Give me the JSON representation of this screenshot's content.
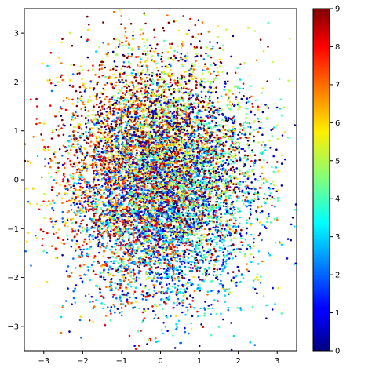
{
  "chart_data": {
    "type": "scatter",
    "title": "",
    "xlabel": "",
    "ylabel": "",
    "xlim": [
      -3.5,
      3.5
    ],
    "ylim": [
      -3.5,
      3.5
    ],
    "grid": false,
    "x_ticks": [
      -3,
      -2,
      -1,
      0,
      1,
      2,
      3
    ],
    "y_ticks": [
      -3,
      -2,
      -1,
      0,
      1,
      2,
      3
    ],
    "x_tick_labels": [
      "−3",
      "−2",
      "−1",
      "0",
      "1",
      "2",
      "3"
    ],
    "y_tick_labels": [
      "−3",
      "−2",
      "−1",
      "0",
      "1",
      "2",
      "3"
    ],
    "colorbar": {
      "colormap": "jet",
      "range": [
        0,
        9
      ],
      "ticks": [
        0,
        1,
        2,
        3,
        4,
        5,
        6,
        7,
        8,
        9
      ],
      "tick_labels": [
        "0",
        "1",
        "2",
        "3",
        "4",
        "5",
        "6",
        "7",
        "8",
        "9"
      ]
    },
    "point_distribution": {
      "description": "dense cloud of many thousands of points, roughly bivariate normal, colored by class 0-9",
      "x_mean": 0.0,
      "x_std": 1.15,
      "y_mean": 0.0,
      "y_std": 1.15,
      "classes": [
        {
          "label": 0,
          "color": "#00008f",
          "x_center": 0.6,
          "y_center": 0.2
        },
        {
          "label": 1,
          "color": "#0000ff",
          "x_center": 0.3,
          "y_center": -0.6
        },
        {
          "label": 2,
          "color": "#0070ff",
          "x_center": -0.4,
          "y_center": -1.0
        },
        {
          "label": 3,
          "color": "#00dfff",
          "x_center": 0.5,
          "y_center": -1.2
        },
        {
          "label": 4,
          "color": "#50ffaf",
          "x_center": 1.0,
          "y_center": -0.3
        },
        {
          "label": 5,
          "color": "#bfff40",
          "x_center": 0.2,
          "y_center": 1.2
        },
        {
          "label": 6,
          "color": "#ffdf00",
          "x_center": -0.5,
          "y_center": 0.6
        },
        {
          "label": 7,
          "color": "#ff7000",
          "x_center": -0.8,
          "y_center": 0.3
        },
        {
          "label": 8,
          "color": "#ff0000",
          "x_center": -0.9,
          "y_center": -0.1
        },
        {
          "label": 9,
          "color": "#800000",
          "x_center": -0.3,
          "y_center": 1.0
        }
      ]
    }
  }
}
